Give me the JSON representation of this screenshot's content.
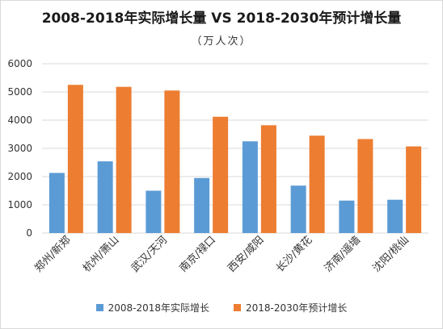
{
  "chart_data": {
    "type": "bar",
    "title": "2008-2018年实际增长量 VS 2018-2030年预计增长量",
    "subtitle": "（万人次）",
    "categories": [
      "郑州/新郑",
      "杭州/萧山",
      "武汉/天河",
      "南京/禄口",
      "西安/咸阳",
      "长沙/黄花",
      "济南/遥墙",
      "沈阳/桃仙"
    ],
    "series": [
      {
        "name": "2008-2018年实际增长",
        "color": "#5B9BD5",
        "values": [
          2130,
          2540,
          1500,
          1950,
          3250,
          1680,
          1150,
          1180
        ]
      },
      {
        "name": "2018-2030年预计增长",
        "color": "#ED7D31",
        "values": [
          5250,
          5180,
          5050,
          4120,
          3820,
          3450,
          3330,
          3070
        ]
      }
    ],
    "ylim": [
      0,
      6000
    ],
    "yticks": [
      "0",
      "1000",
      "2000",
      "3000",
      "4000",
      "5000",
      "6000"
    ],
    "grid": true,
    "legend_position": "bottom"
  }
}
